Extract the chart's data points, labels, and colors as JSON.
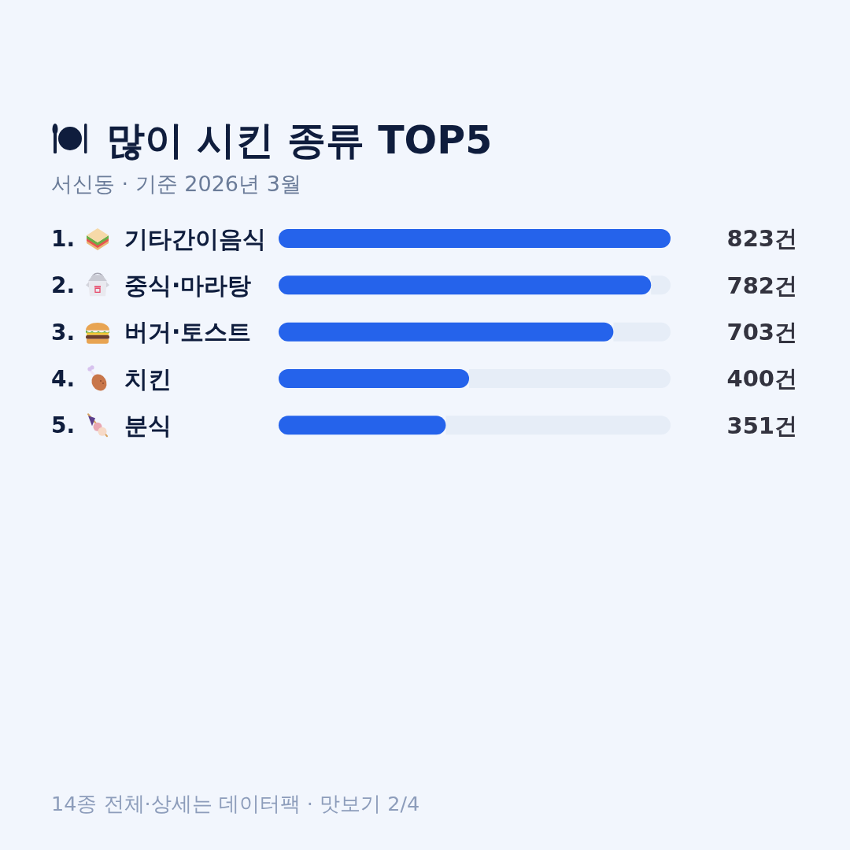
{
  "chart_data": {
    "type": "bar",
    "orientation": "horizontal",
    "title": "많이 시킨 종류 TOP5",
    "subtitle": "서신동 · 기준 2026년 3월",
    "categories": [
      "기타간이음식",
      "중식·마라탕",
      "버거·토스트",
      "치킨",
      "분식"
    ],
    "values": [
      823,
      782,
      703,
      400,
      351
    ],
    "color": "#2563eb",
    "xlim": [
      0,
      823
    ],
    "value_labels": [
      "823건",
      "782건",
      "703건",
      "400건",
      "351건"
    ],
    "tick_labels": "y",
    "annotations": [
      "1.",
      "2.",
      "3.",
      "4.",
      "5.",
      "14종 전체·상세는 데이터팩 · 맛보기 2/4"
    ]
  }
}
